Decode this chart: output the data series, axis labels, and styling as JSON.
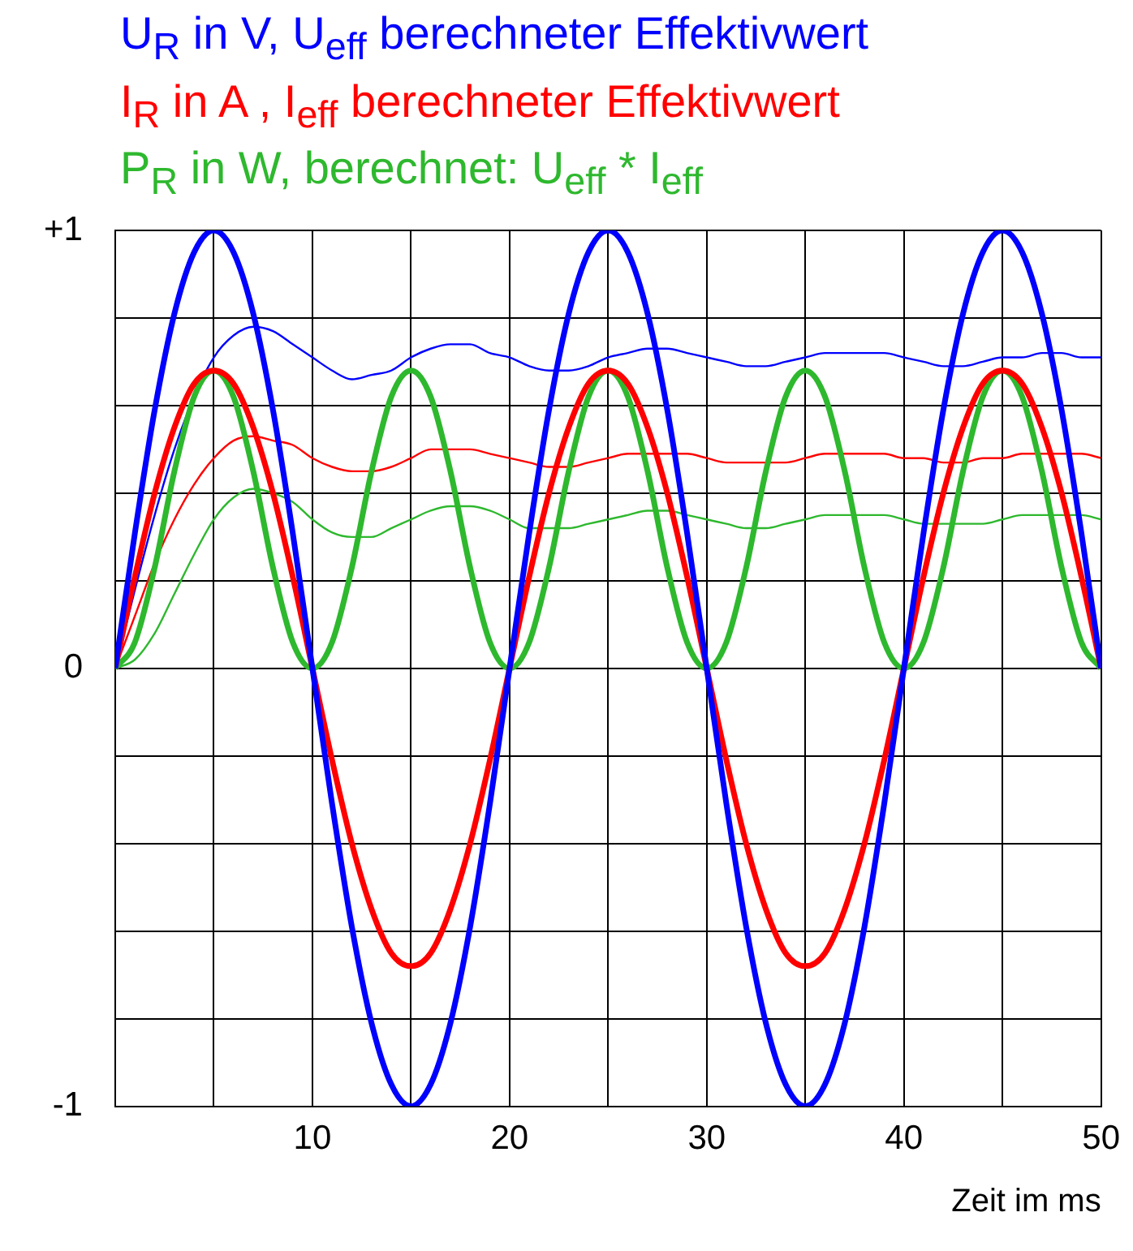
{
  "chart_data": {
    "type": "line",
    "x": [
      0,
      1,
      2,
      3,
      4,
      5,
      6,
      7,
      8,
      9,
      10,
      11,
      12,
      13,
      14,
      15,
      16,
      17,
      18,
      19,
      20,
      21,
      22,
      23,
      24,
      25,
      26,
      27,
      28,
      29,
      30,
      31,
      32,
      33,
      34,
      35,
      36,
      37,
      38,
      39,
      40,
      41,
      42,
      43,
      44,
      45,
      46,
      47,
      48,
      49,
      50
    ],
    "series": [
      {
        "name": "U$_{R}$ in V, U$_{eff}$ berechneter Effektivwert",
        "color": "#0000ff",
        "values": [
          0,
          0.31,
          0.59,
          0.81,
          0.95,
          1,
          0.95,
          0.81,
          0.59,
          0.31,
          0,
          -0.31,
          -0.59,
          -0.81,
          -0.95,
          -1,
          -0.95,
          -0.81,
          -0.59,
          -0.31,
          0,
          0.31,
          0.59,
          0.81,
          0.95,
          1,
          0.95,
          0.81,
          0.59,
          0.31,
          0,
          -0.31,
          -0.59,
          -0.81,
          -0.95,
          -1,
          -0.95,
          -0.81,
          -0.59,
          -0.31,
          0,
          0.31,
          0.59,
          0.81,
          0.95,
          1,
          0.95,
          0.81,
          0.59,
          0.31,
          0
        ]
      },
      {
        "name": "I$_{R}$ in A , I$_{eff}$ berechneter Effektivwert",
        "color": "#ff0000",
        "values": [
          0,
          0.21,
          0.4,
          0.55,
          0.65,
          0.68,
          0.65,
          0.55,
          0.4,
          0.21,
          0,
          -0.21,
          -0.4,
          -0.55,
          -0.65,
          -0.68,
          -0.65,
          -0.55,
          -0.4,
          -0.21,
          0,
          0.21,
          0.4,
          0.55,
          0.65,
          0.68,
          0.65,
          0.55,
          0.4,
          0.21,
          0,
          -0.21,
          -0.4,
          -0.55,
          -0.65,
          -0.68,
          -0.65,
          -0.55,
          -0.4,
          -0.21,
          0,
          0.21,
          0.4,
          0.55,
          0.65,
          0.68,
          0.65,
          0.55,
          0.4,
          0.21,
          0
        ]
      },
      {
        "name": "P$_{R}$ in W, berechnet: U$_{eff}$ * I$_{eff}$",
        "color": "#2eb82e",
        "values": [
          0,
          0.06,
          0.23,
          0.45,
          0.62,
          0.68,
          0.62,
          0.45,
          0.23,
          0.06,
          0,
          0.06,
          0.23,
          0.45,
          0.62,
          0.68,
          0.62,
          0.45,
          0.23,
          0.06,
          0,
          0.06,
          0.23,
          0.45,
          0.62,
          0.68,
          0.62,
          0.45,
          0.23,
          0.06,
          0,
          0.06,
          0.23,
          0.45,
          0.62,
          0.68,
          0.62,
          0.45,
          0.23,
          0.06,
          0,
          0.06,
          0.23,
          0.45,
          0.62,
          0.68,
          0.62,
          0.45,
          0.23,
          0.06,
          0
        ]
      },
      {
        "color": "#0000ff",
        "values": [
          0,
          0.18,
          0.35,
          0.5,
          0.62,
          0.71,
          0.76,
          0.78,
          0.77,
          0.74,
          0.71,
          0.68,
          0.66,
          0.67,
          0.68,
          0.71,
          0.73,
          0.74,
          0.74,
          0.72,
          0.71,
          0.69,
          0.68,
          0.68,
          0.69,
          0.71,
          0.72,
          0.73,
          0.73,
          0.72,
          0.71,
          0.7,
          0.69,
          0.69,
          0.7,
          0.71,
          0.72,
          0.72,
          0.72,
          0.72,
          0.71,
          0.7,
          0.69,
          0.69,
          0.7,
          0.71,
          0.71,
          0.72,
          0.72,
          0.71,
          0.71
        ]
      },
      {
        "color": "#ff0000",
        "values": [
          0,
          0.12,
          0.24,
          0.34,
          0.42,
          0.48,
          0.52,
          0.53,
          0.52,
          0.51,
          0.48,
          0.46,
          0.45,
          0.45,
          0.46,
          0.48,
          0.5,
          0.5,
          0.5,
          0.49,
          0.48,
          0.47,
          0.46,
          0.46,
          0.47,
          0.48,
          0.49,
          0.49,
          0.49,
          0.49,
          0.48,
          0.47,
          0.47,
          0.47,
          0.47,
          0.48,
          0.49,
          0.49,
          0.49,
          0.49,
          0.48,
          0.48,
          0.47,
          0.47,
          0.48,
          0.48,
          0.49,
          0.49,
          0.49,
          0.49,
          0.48
        ]
      },
      {
        "color": "#2eb82e",
        "values": [
          0,
          0.02,
          0.08,
          0.17,
          0.26,
          0.34,
          0.39,
          0.41,
          0.4,
          0.38,
          0.34,
          0.31,
          0.3,
          0.3,
          0.32,
          0.34,
          0.36,
          0.37,
          0.37,
          0.36,
          0.34,
          0.32,
          0.32,
          0.32,
          0.33,
          0.34,
          0.35,
          0.36,
          0.36,
          0.35,
          0.34,
          0.33,
          0.32,
          0.32,
          0.33,
          0.34,
          0.35,
          0.35,
          0.35,
          0.35,
          0.34,
          0.33,
          0.33,
          0.33,
          0.33,
          0.34,
          0.35,
          0.35,
          0.35,
          0.35,
          0.34
        ]
      }
    ],
    "xlabel": "Zeit im ms",
    "xlim": [
      0,
      50
    ],
    "xticks": [
      {
        "value": 0,
        "label": null
      },
      {
        "value": 5,
        "label": null
      },
      10,
      {
        "value": 15,
        "label": null
      },
      20,
      {
        "value": 25,
        "label": null
      },
      30,
      {
        "value": 35,
        "label": null
      },
      40,
      {
        "value": 45,
        "label": null
      },
      50
    ],
    "ylim": [
      -1,
      1
    ],
    "yticks": [
      {
        "value": -1,
        "label": "-1"
      },
      {
        "value": -0.8,
        "label": null
      },
      {
        "value": -0.6,
        "label": null
      },
      {
        "value": -0.4,
        "label": null
      },
      {
        "value": -0.2,
        "label": null
      },
      0,
      {
        "value": 0.2,
        "label": null
      },
      {
        "value": 0.4,
        "label": null
      },
      {
        "value": 0.6,
        "label": null
      },
      {
        "value": 0.8,
        "label": null
      },
      {
        "value": 1,
        "label": "+1"
      }
    ],
    "grid": true,
    "legend": "top left",
    "marker": "none",
    "line_style": "solid"
  }
}
